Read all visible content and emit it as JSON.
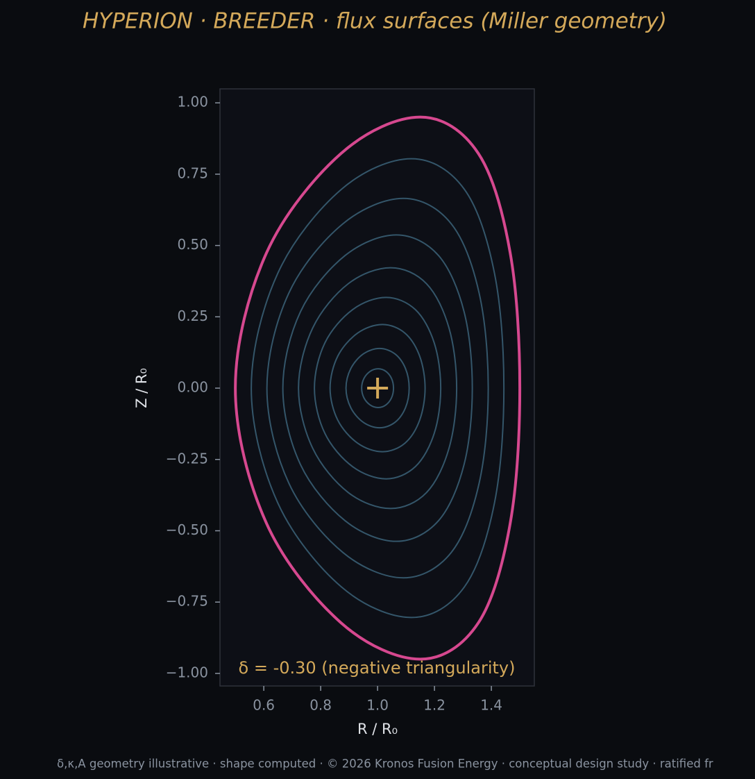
{
  "chart_data": {
    "type": "line",
    "title": "HYPERION · BREEDER  ·  flux surfaces (Miller geometry)",
    "xlabel": "R / R₀",
    "ylabel": "Z / R₀",
    "annotation": "δ = -0.30  (negative triangularity)",
    "footer": "δ,κ,A geometry illustrative · shape computed · © 2026 Kronos Fusion Energy · conceptual design study · ratified fr",
    "closed": true,
    "xlim": [
      0.446,
      1.551
    ],
    "ylim": [
      -1.044,
      1.049
    ],
    "xticks": [
      0.6,
      0.8,
      {
        "value": 1.0,
        "label": "1.0"
      },
      1.2,
      1.4
    ],
    "yticks": [
      {
        "value": -1.0,
        "label": "−1.00"
      },
      {
        "value": -0.75,
        "label": "−0.75"
      },
      {
        "value": -0.5,
        "label": "−0.50"
      },
      {
        "value": -0.25,
        "label": "−0.25"
      },
      {
        "value": 0.0,
        "label": "0.00"
      },
      {
        "value": 0.25,
        "label": "0.25"
      },
      {
        "value": 0.5,
        "label": "0.50"
      },
      {
        "value": 0.75,
        "label": "0.75"
      },
      {
        "value": 1.0,
        "label": "1.00"
      }
    ],
    "series": [
      {
        "color": "#34566a",
        "x": [
          1.056,
          1.049,
          1.029,
          1.002,
          0.974,
          0.952,
          0.944,
          0.952,
          0.974,
          1.002,
          1.029,
          1.049
        ],
        "values": [
          0,
          0.034,
          0.059,
          0.068,
          0.059,
          0.034,
          0,
          -0.034,
          -0.059,
          -0.068,
          -0.059,
          -0.034
        ]
      },
      {
        "color": "#34566a",
        "x": [
          1.111,
          1.098,
          1.061,
          1.007,
          0.95,
          0.906,
          0.889,
          0.906,
          0.95,
          1.007,
          1.061,
          1.098
        ],
        "values": [
          0,
          0.069,
          0.12,
          0.139,
          0.12,
          0.069,
          0,
          -0.069,
          -0.12,
          -0.139,
          -0.12,
          -0.069
        ]
      },
      {
        "color": "#34566a",
        "x": [
          1.167,
          1.148,
          1.096,
          1.017,
          0.93,
          0.86,
          0.833,
          0.86,
          0.93,
          1.017,
          1.096,
          1.148
        ],
        "values": [
          0,
          0.112,
          0.193,
          0.223,
          0.193,
          0.112,
          0,
          -0.112,
          -0.193,
          -0.223,
          -0.193,
          -0.112
        ]
      },
      {
        "color": "#34566a",
        "x": [
          1.222,
          1.199,
          1.133,
          1.03,
          0.912,
          0.815,
          0.778,
          0.815,
          0.912,
          1.03,
          1.133,
          1.199
        ],
        "values": [
          0,
          0.159,
          0.275,
          0.318,
          0.275,
          0.159,
          0,
          -0.159,
          -0.275,
          -0.318,
          -0.275,
          -0.159
        ]
      },
      {
        "color": "#34566a",
        "x": [
          1.278,
          1.251,
          1.172,
          1.046,
          0.897,
          0.772,
          0.722,
          0.772,
          0.897,
          1.046,
          1.172,
          1.251
        ],
        "values": [
          0,
          0.211,
          0.366,
          0.422,
          0.366,
          0.211,
          0,
          -0.211,
          -0.366,
          -0.422,
          -0.366,
          -0.211
        ]
      },
      {
        "color": "#34566a",
        "x": [
          1.333,
          1.304,
          1.214,
          1.066,
          0.886,
          0.729,
          0.667,
          0.729,
          0.886,
          1.066,
          1.214,
          1.304
        ],
        "values": [
          0,
          0.268,
          0.465,
          0.537,
          0.465,
          0.268,
          0,
          -0.268,
          -0.465,
          -0.537,
          -0.465,
          -0.268
        ]
      },
      {
        "color": "#34566a",
        "x": [
          1.389,
          1.357,
          1.259,
          1.091,
          0.878,
          0.688,
          0.611,
          0.688,
          0.878,
          1.091,
          1.259,
          1.357
        ],
        "values": [
          0,
          0.333,
          0.576,
          0.665,
          0.576,
          0.333,
          0,
          -0.333,
          -0.576,
          -0.665,
          -0.576,
          -0.333
        ]
      },
      {
        "color": "#34566a",
        "x": [
          1.444,
          1.411,
          1.305,
          1.119,
          0.873,
          0.649,
          0.556,
          0.649,
          0.873,
          1.119,
          1.305,
          1.411
        ],
        "values": [
          0,
          0.402,
          0.697,
          0.804,
          0.697,
          0.402,
          0,
          -0.402,
          -0.697,
          -0.804,
          -0.697,
          -0.402
        ]
      },
      {
        "color": "#d6488f",
        "x": [
          1.5,
          1.466,
          1.354,
          1.15,
          0.872,
          0.61,
          0.5,
          0.61,
          0.872,
          1.15,
          1.354,
          1.466
        ],
        "values": [
          0,
          0.475,
          0.823,
          0.95,
          0.823,
          0.475,
          0,
          -0.475,
          -0.823,
          -0.95,
          -0.823,
          -0.475
        ]
      }
    ],
    "marker": {
      "x": 1.0,
      "y": 0.0,
      "color": "#d4a95a"
    }
  }
}
